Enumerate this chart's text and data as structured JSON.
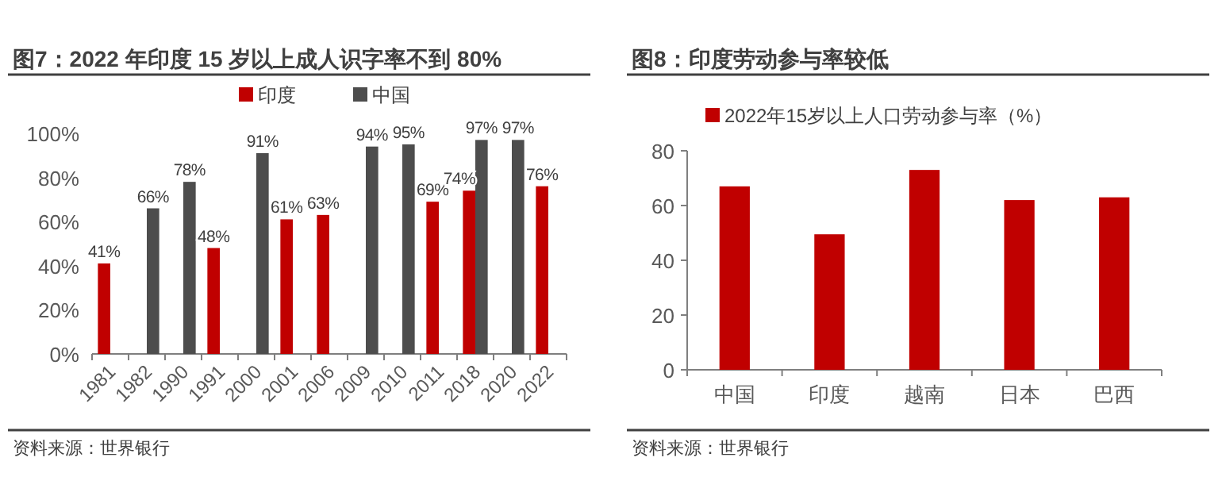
{
  "chart_data": [
    {
      "type": "bar",
      "title": "图7：2022 年印度 15 岁以上成人识字率不到 80%",
      "categories": [
        "1981",
        "1982",
        "1990",
        "1991",
        "2000",
        "2001",
        "2006",
        "2009",
        "2010",
        "2011",
        "2018",
        "2020",
        "2022"
      ],
      "series": [
        {
          "name": "印度",
          "color": "#c00000",
          "values": [
            41,
            null,
            null,
            48,
            null,
            61,
            63,
            null,
            null,
            69,
            74,
            null,
            76
          ],
          "value_labels": [
            "41%",
            null,
            null,
            "48%",
            null,
            "61%",
            "63%",
            null,
            null,
            "69%",
            "74%",
            null,
            "76%"
          ]
        },
        {
          "name": "中国",
          "color": "#4d4d4d",
          "values": [
            null,
            66,
            78,
            null,
            91,
            null,
            null,
            94,
            95,
            null,
            97,
            97,
            null
          ],
          "value_labels": [
            null,
            "66%",
            "78%",
            null,
            "91%",
            null,
            null,
            "94%",
            "95%",
            null,
            "97%",
            "97%",
            null
          ]
        }
      ],
      "ylim": [
        0,
        100
      ],
      "yticks": [
        {
          "value": 0,
          "label": "0%"
        },
        {
          "value": 20,
          "label": "20%"
        },
        {
          "value": 40,
          "label": "40%"
        },
        {
          "value": 60,
          "label": "60%"
        },
        {
          "value": 80,
          "label": "80%"
        },
        {
          "value": 100,
          "label": "100%"
        }
      ],
      "grid": false,
      "legend": "top",
      "annotations": [
        "资料来源：世界银行"
      ]
    },
    {
      "type": "bar",
      "title": "图8：印度劳动参与率较低",
      "categories": [
        "中国",
        "印度",
        "越南",
        "日本",
        "巴西"
      ],
      "series": [
        {
          "name": "2022年15岁以上人口劳动参与率（%）",
          "color": "#c00000",
          "values": [
            67,
            49.5,
            73,
            62,
            63
          ]
        }
      ],
      "ylim": [
        0,
        80
      ],
      "yticks": [
        0,
        20,
        40,
        60,
        80
      ],
      "grid": false,
      "legend": "top",
      "annotations": [
        "资料来源：世界银行"
      ]
    }
  ]
}
